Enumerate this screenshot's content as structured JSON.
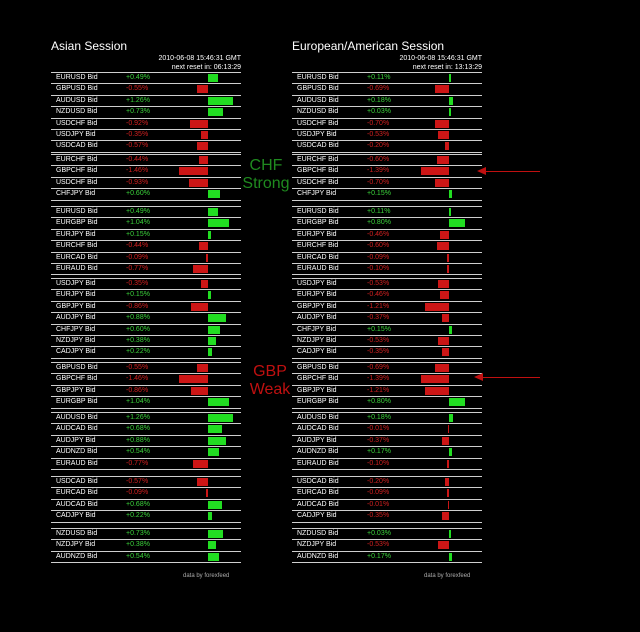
{
  "colors": {
    "positive": "#22dd22",
    "negative": "#cc1616",
    "background": "#000000",
    "chf_note": "#1f8a1f",
    "gbp_note": "#c01010"
  },
  "panels": [
    {
      "title": "Asian Session",
      "timestamp": "2010-06-08 15:46:31 GMT",
      "next_reset": "next reset in: 06:13:29",
      "credit": "data by forexfeed",
      "groups": [
        [
          [
            "EURUSD Bid",
            "+0.49%",
            0.49
          ],
          [
            "GBPUSD Bid",
            "-0.55%",
            -0.55
          ],
          [
            "AUDUSD Bid",
            "+1.26%",
            1.26
          ],
          [
            "NZDUSD Bid",
            "+0.73%",
            0.73
          ],
          [
            "USDCHF Bid",
            "-0.92%",
            -0.92
          ],
          [
            "USDJPY Bid",
            "-0.35%",
            -0.35
          ],
          [
            "USDCAD Bid",
            "-0.57%",
            -0.57
          ]
        ],
        [
          [
            "EURCHF Bid",
            "-0.44%",
            -0.44
          ],
          [
            "GBPCHF Bid",
            "-1.46%",
            -1.46
          ],
          [
            "USDCHF Bid",
            "-0.93%",
            -0.93
          ],
          [
            "CHFJPY Bid",
            "+0.60%",
            0.6
          ]
        ],
        [
          [
            "EURUSD Bid",
            "+0.49%",
            0.49
          ],
          [
            "EURGBP Bid",
            "+1.04%",
            1.04
          ],
          [
            "EURJPY Bid",
            "+0.15%",
            0.15
          ],
          [
            "EURCHF Bid",
            "-0.44%",
            -0.44
          ],
          [
            "EURCAD Bid",
            "-0.09%",
            -0.09
          ],
          [
            "EURAUD Bid",
            "-0.77%",
            -0.77
          ]
        ],
        [
          [
            "USDJPY Bid",
            "-0.35%",
            -0.35
          ],
          [
            "EURJPY Bid",
            "+0.15%",
            0.15
          ],
          [
            "GBPJPY Bid",
            "-0.86%",
            -0.86
          ],
          [
            "AUDJPY Bid",
            "+0.88%",
            0.88
          ],
          [
            "CHFJPY Bid",
            "+0.60%",
            0.6
          ],
          [
            "NZDJPY Bid",
            "+0.38%",
            0.38
          ],
          [
            "CADJPY Bid",
            "+0.22%",
            0.22
          ]
        ],
        [
          [
            "GBPUSD Bid",
            "-0.55%",
            -0.55
          ],
          [
            "GBPCHF Bid",
            "-1.46%",
            -1.46
          ],
          [
            "GBPJPY Bid",
            "-0.86%",
            -0.86
          ],
          [
            "EURGBP Bid",
            "+1.04%",
            1.04
          ]
        ],
        [
          [
            "AUDUSD Bid",
            "+1.26%",
            1.26
          ],
          [
            "AUDCAD Bid",
            "+0.68%",
            0.68
          ],
          [
            "AUDJPY Bid",
            "+0.88%",
            0.88
          ],
          [
            "AUDNZD Bid",
            "+0.54%",
            0.54
          ],
          [
            "EURAUD Bid",
            "-0.77%",
            -0.77
          ]
        ],
        [
          [
            "USDCAD Bid",
            "-0.57%",
            -0.57
          ],
          [
            "EURCAD Bid",
            "-0.09%",
            -0.09
          ],
          [
            "AUDCAD Bid",
            "+0.68%",
            0.68
          ],
          [
            "CADJPY Bid",
            "+0.22%",
            0.22
          ]
        ],
        [
          [
            "NZDUSD Bid",
            "+0.73%",
            0.73
          ],
          [
            "NZDJPY Bid",
            "+0.38%",
            0.38
          ],
          [
            "AUDNZD Bid",
            "+0.54%",
            0.54
          ]
        ]
      ]
    },
    {
      "title": "European/American Session",
      "timestamp": "2010-06-08 15:46:31 GMT",
      "next_reset": "next reset in: 13:13:29",
      "credit": "data by forexfeed",
      "groups": [
        [
          [
            "EURUSD Bid",
            "+0.11%",
            0.11
          ],
          [
            "GBPUSD Bid",
            "-0.69%",
            -0.69
          ],
          [
            "AUDUSD Bid",
            "+0.18%",
            0.18
          ],
          [
            "NZDUSD Bid",
            "+0.03%",
            0.03
          ],
          [
            "USDCHF Bid",
            "-0.70%",
            -0.7
          ],
          [
            "USDJPY Bid",
            "-0.53%",
            -0.53
          ],
          [
            "USDCAD Bid",
            "-0.20%",
            -0.2
          ]
        ],
        [
          [
            "EURCHF Bid",
            "-0.60%",
            -0.6
          ],
          [
            "GBPCHF Bid",
            "-1.39%",
            -1.39
          ],
          [
            "USDCHF Bid",
            "-0.70%",
            -0.7
          ],
          [
            "CHFJPY Bid",
            "+0.15%",
            0.15
          ]
        ],
        [
          [
            "EURUSD Bid",
            "+0.11%",
            0.11
          ],
          [
            "EURGBP Bid",
            "+0.80%",
            0.8
          ],
          [
            "EURJPY Bid",
            "-0.46%",
            -0.46
          ],
          [
            "EURCHF Bid",
            "-0.60%",
            -0.6
          ],
          [
            "EURCAD Bid",
            "-0.09%",
            -0.09
          ],
          [
            "EURAUD Bid",
            "-0.10%",
            -0.1
          ]
        ],
        [
          [
            "USDJPY Bid",
            "-0.53%",
            -0.53
          ],
          [
            "EURJPY Bid",
            "-0.46%",
            -0.46
          ],
          [
            "GBPJPY Bid",
            "-1.21%",
            -1.21
          ],
          [
            "AUDJPY Bid",
            "-0.37%",
            -0.37
          ],
          [
            "CHFJPY Bid",
            "+0.15%",
            0.15
          ],
          [
            "NZDJPY Bid",
            "-0.53%",
            -0.53
          ],
          [
            "CADJPY Bid",
            "-0.35%",
            -0.35
          ]
        ],
        [
          [
            "GBPUSD Bid",
            "-0.69%",
            -0.69
          ],
          [
            "GBPCHF Bid",
            "-1.39%",
            -1.39
          ],
          [
            "GBPJPY Bid",
            "-1.21%",
            -1.21
          ],
          [
            "EURGBP Bid",
            "+0.80%",
            0.8
          ]
        ],
        [
          [
            "AUDUSD Bid",
            "+0.18%",
            0.18
          ],
          [
            "AUDCAD Bid",
            "-0.01%",
            -0.01
          ],
          [
            "AUDJPY Bid",
            "-0.37%",
            -0.37
          ],
          [
            "AUDNZD Bid",
            "+0.17%",
            0.17
          ],
          [
            "EURAUD Bid",
            "-0.10%",
            -0.1
          ]
        ],
        [
          [
            "USDCAD Bid",
            "-0.20%",
            -0.2
          ],
          [
            "EURCAD Bid",
            "-0.09%",
            -0.09
          ],
          [
            "AUDCAD Bid",
            "-0.01%",
            -0.01
          ],
          [
            "CADJPY Bid",
            "-0.35%",
            -0.35
          ]
        ],
        [
          [
            "NZDUSD Bid",
            "+0.03%",
            0.03
          ],
          [
            "NZDJPY Bid",
            "-0.53%",
            -0.53
          ],
          [
            "AUDNZD Bid",
            "+0.17%",
            0.17
          ]
        ]
      ]
    }
  ],
  "annotations": {
    "chf_line1": "CHF",
    "chf_line2": "Strong",
    "gbp_line1": "GBP",
    "gbp_line2": "Weak"
  }
}
